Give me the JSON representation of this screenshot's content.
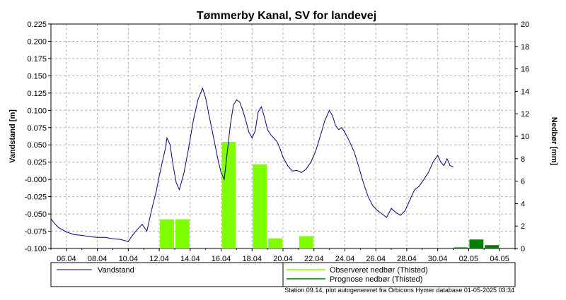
{
  "chart_data": {
    "type": "line",
    "title": "Tømmerby Kanal, SV for landevej",
    "ylabel_left": "Vandstand [m]",
    "ylabel_right": "Nedbør [mm]",
    "ylim_left": [
      -0.1,
      0.225
    ],
    "ylim_right": [
      0,
      20
    ],
    "yticks_left": [
      "0.225",
      "0.200",
      "0.175",
      "0.150",
      "0.125",
      "0.100",
      "0.075",
      "0.050",
      "0.025",
      "-0.000",
      "-0.025",
      "-0.050",
      "-0.075",
      "-0.100"
    ],
    "yticks_right": [
      "20",
      "18",
      "16",
      "14",
      "12",
      "10",
      "8",
      "6",
      "4",
      "2",
      "0"
    ],
    "xlim": [
      "05.04",
      "05.05"
    ],
    "xticks": [
      "06.04",
      "08.04",
      "10.04",
      "12.04",
      "14.04",
      "16.04",
      "18.04",
      "20.04",
      "22.04",
      "24.04",
      "26.04",
      "28.04",
      "30.04",
      "02.05",
      "04.05"
    ],
    "grid": true,
    "legend_position": "bottom",
    "series": [
      {
        "name": "Vandstand",
        "color": "#00007f",
        "x": [
          5.0,
          5.2,
          5.5,
          6.0,
          6.5,
          7.0,
          7.5,
          8.0,
          8.5,
          9.0,
          9.5,
          10.0,
          10.3,
          10.6,
          10.9,
          11.2,
          11.5,
          11.8,
          12.0,
          12.2,
          12.4,
          12.5,
          12.7,
          12.9,
          13.1,
          13.3,
          13.6,
          13.9,
          14.2,
          14.5,
          14.8,
          15.0,
          15.2,
          15.5,
          15.8,
          16.0,
          16.2,
          16.4,
          16.6,
          16.8,
          17.0,
          17.2,
          17.4,
          17.6,
          17.8,
          18.0,
          18.2,
          18.4,
          18.6,
          18.8,
          19.0,
          19.2,
          19.4,
          19.6,
          19.8,
          20.0,
          20.3,
          20.6,
          20.9,
          21.2,
          21.5,
          21.8,
          22.1,
          22.4,
          22.7,
          23.0,
          23.2,
          23.4,
          23.6,
          23.8,
          24.0,
          24.3,
          24.6,
          24.9,
          25.2,
          25.5,
          25.8,
          26.1,
          26.4,
          26.7,
          27.0,
          27.3,
          27.6,
          27.9,
          28.2,
          28.5,
          28.8,
          29.1,
          29.4,
          29.7,
          30.0,
          30.2,
          30.4,
          30.6,
          30.8,
          31.0
        ],
        "values": [
          -0.057,
          -0.063,
          -0.07,
          -0.076,
          -0.08,
          -0.081,
          -0.083,
          -0.084,
          -0.084,
          -0.086,
          -0.087,
          -0.09,
          -0.08,
          -0.072,
          -0.065,
          -0.075,
          -0.045,
          -0.018,
          0.005,
          0.025,
          0.045,
          0.06,
          0.05,
          0.02,
          -0.005,
          -0.015,
          0.01,
          0.045,
          0.085,
          0.115,
          0.132,
          0.118,
          0.095,
          0.062,
          0.028,
          0.01,
          0.0,
          0.04,
          0.08,
          0.108,
          0.115,
          0.112,
          0.1,
          0.085,
          0.068,
          0.06,
          0.07,
          0.098,
          0.105,
          0.09,
          0.072,
          0.065,
          0.06,
          0.055,
          0.045,
          0.032,
          0.02,
          0.012,
          0.013,
          0.01,
          0.015,
          0.025,
          0.04,
          0.062,
          0.085,
          0.1,
          0.092,
          0.078,
          0.072,
          0.075,
          0.068,
          0.055,
          0.04,
          0.018,
          -0.005,
          -0.025,
          -0.038,
          -0.045,
          -0.05,
          -0.055,
          -0.042,
          -0.048,
          -0.052,
          -0.045,
          -0.03,
          -0.015,
          -0.01,
          0.0,
          0.01,
          0.025,
          0.035,
          0.025,
          0.02,
          0.03,
          0.02,
          0.018
        ]
      },
      {
        "name": "Observeret nedbør (Thisted)",
        "color": "#80ff00",
        "bars": [
          {
            "x": 12.5,
            "value": 2.6
          },
          {
            "x": 13.5,
            "value": 2.6
          },
          {
            "x": 16.5,
            "value": 9.5
          },
          {
            "x": 18.5,
            "value": 7.5
          },
          {
            "x": 19.5,
            "value": 0.9
          },
          {
            "x": 21.5,
            "value": 1.1
          }
        ]
      },
      {
        "name": "Prognose nedbør (Thisted)",
        "color": "#008000",
        "bars": [
          {
            "x": 31.5,
            "value": 0.1
          },
          {
            "x": 32.5,
            "value": 0.8
          },
          {
            "x": 33.5,
            "value": 0.3
          }
        ]
      }
    ]
  },
  "footer": "Station 09.14, plot autogenereret fra Orbicons Hymer database 01-05-2025 03:34"
}
